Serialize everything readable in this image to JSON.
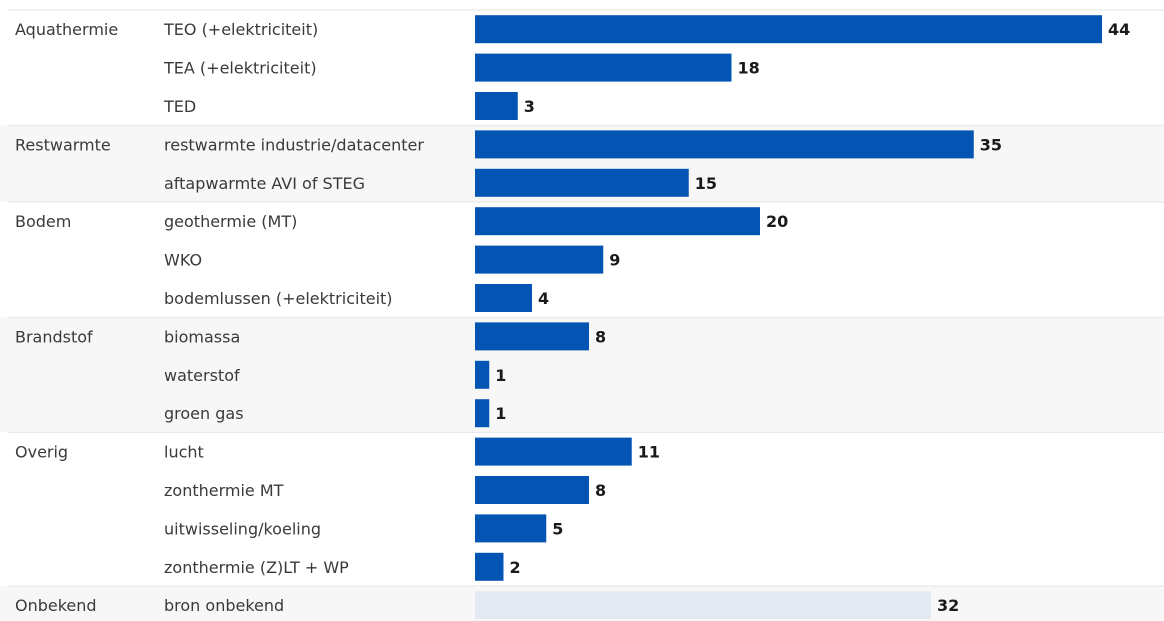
{
  "chart_data": {
    "type": "bar",
    "orientation": "horizontal",
    "groups": [
      {
        "name": "Aquathermie",
        "items": [
          {
            "label": "TEO (+elektriciteit)",
            "value": 44
          },
          {
            "label": "TEA (+elektriciteit)",
            "value": 18
          },
          {
            "label": "TED",
            "value": 3
          }
        ]
      },
      {
        "name": "Restwarmte",
        "items": [
          {
            "label": "restwarmte industrie/datacenter",
            "value": 35
          },
          {
            "label": "aftapwarmte AVI of STEG",
            "value": 15
          }
        ]
      },
      {
        "name": "Bodem",
        "items": [
          {
            "label": "geothermie (MT)",
            "value": 20
          },
          {
            "label": "WKO",
            "value": 9
          },
          {
            "label": "bodemlussen (+elektriciteit)",
            "value": 4
          }
        ]
      },
      {
        "name": "Brandstof",
        "items": [
          {
            "label": "biomassa",
            "value": 8
          },
          {
            "label": "waterstof",
            "value": 1
          },
          {
            "label": "groen gas",
            "value": 1
          }
        ]
      },
      {
        "name": "Overig",
        "items": [
          {
            "label": "lucht",
            "value": 11
          },
          {
            "label": "zonthermie MT",
            "value": 8
          },
          {
            "label": "uitwisseling/koeling",
            "value": 5
          },
          {
            "label": "zonthermie (Z)LT + WP",
            "value": 2
          }
        ]
      },
      {
        "name": "Onbekend",
        "items": [
          {
            "label": "bron onbekend",
            "value": 32,
            "muted": true
          }
        ]
      }
    ],
    "xlim": [
      0,
      44
    ],
    "grid": false,
    "colors": {
      "bar": "#0454b4",
      "bar_muted": "#e4e9f2",
      "band_shaded": "#f7f7f7",
      "band_plain": "#ffffff",
      "separator": "#e6e6e6"
    }
  }
}
